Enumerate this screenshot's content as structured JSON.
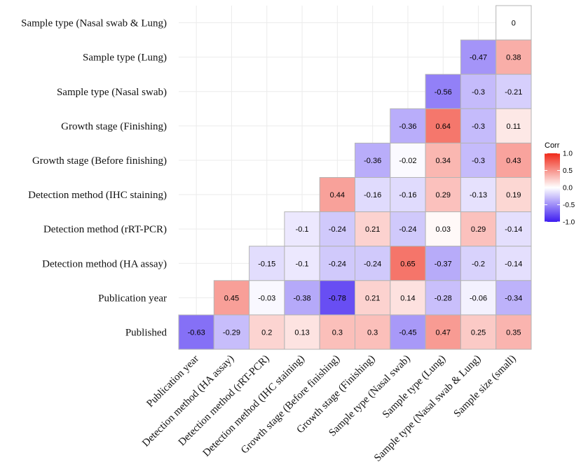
{
  "chart_data": {
    "type": "heatmap",
    "title": "",
    "xlabel": "",
    "ylabel": "",
    "x_labels": [
      "Publication year",
      "Detection method (HA assay)",
      "Detection method (rRT-PCR)",
      "Detection method (IHC staining)",
      "Growth stage (Before finishing)",
      "Growth stage (Finishing)",
      "Sample type (Nasal swab)",
      "Sample type (Lung)",
      "Sample type (Nasal swab & Lung)",
      "Sample size (small)"
    ],
    "y_labels": [
      "Sample type (Nasal swab & Lung)",
      "Sample type (Lung)",
      "Sample type (Nasal swab)",
      "Growth stage (Finishing)",
      "Growth stage (Before finishing)",
      "Detection method (IHC staining)",
      "Detection method (rRT-PCR)",
      "Detection method (HA assay)",
      "Publication year",
      "Published"
    ],
    "cells": [
      [
        null,
        null,
        null,
        null,
        null,
        null,
        null,
        null,
        null,
        0
      ],
      [
        null,
        null,
        null,
        null,
        null,
        null,
        null,
        null,
        -0.47,
        0.38
      ],
      [
        null,
        null,
        null,
        null,
        null,
        null,
        null,
        -0.56,
        -0.3,
        -0.21
      ],
      [
        null,
        null,
        null,
        null,
        null,
        null,
        -0.36,
        0.64,
        -0.3,
        0.11
      ],
      [
        null,
        null,
        null,
        null,
        null,
        -0.36,
        -0.02,
        0.34,
        -0.3,
        0.43
      ],
      [
        null,
        null,
        null,
        null,
        0.44,
        -0.16,
        -0.16,
        0.29,
        -0.13,
        0.19
      ],
      [
        null,
        null,
        null,
        -0.1,
        -0.24,
        0.21,
        -0.24,
        0.03,
        0.29,
        -0.14
      ],
      [
        null,
        null,
        -0.15,
        -0.1,
        -0.24,
        -0.24,
        0.65,
        -0.37,
        -0.2,
        -0.14
      ],
      [
        null,
        0.45,
        -0.03,
        -0.38,
        -0.78,
        0.21,
        0.14,
        -0.28,
        -0.06,
        -0.34
      ],
      [
        -0.63,
        -0.29,
        0.2,
        0.13,
        0.3,
        0.3,
        -0.45,
        0.47,
        0.25,
        0.35
      ]
    ],
    "legend": {
      "title": "Corr",
      "ticks": [
        "1.0",
        "0.5",
        "0.0",
        "-0.5",
        "-1.0"
      ],
      "range": [
        -1,
        1
      ],
      "placement": "right"
    },
    "colors": {
      "low": "#3d1cf0",
      "mid": "#ffffff",
      "high": "#f02a1a"
    },
    "grid": true
  }
}
